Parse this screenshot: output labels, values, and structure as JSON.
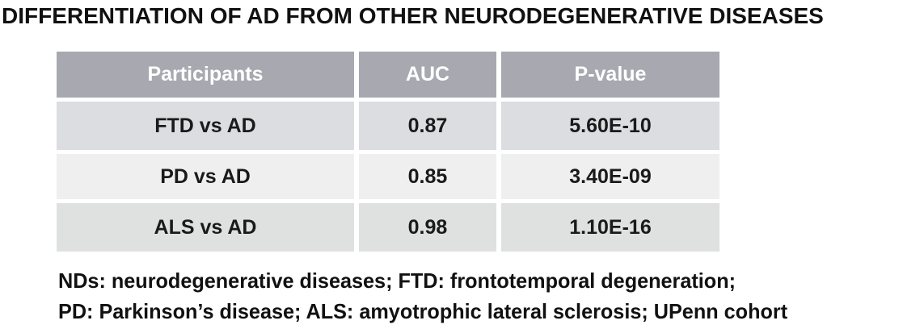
{
  "title": "DIFFERENTIATION OF AD FROM OTHER NEURODEGENERATIVE DISEASES",
  "table": {
    "columns": [
      "Participants",
      "AUC",
      "P-value"
    ],
    "rows": [
      [
        "FTD vs AD",
        "0.87",
        "5.60E-10"
      ],
      [
        "PD vs AD",
        "0.85",
        "3.40E-09"
      ],
      [
        "ALS vs AD",
        "0.98",
        "1.10E-16"
      ]
    ]
  },
  "footnote": {
    "line1": "NDs: neurodegenerative diseases; FTD: frontotemporal degeneration;",
    "line2": "PD: Parkinson’s disease; ALS: amyotrophic lateral sclerosis; UPenn cohort"
  },
  "colors": {
    "background": "#FFFFFF",
    "header_bg": "#A7A8B0",
    "header_text": "#FFFFFF",
    "row1_bg": "#DBDDE1",
    "row2_bg": "#EFEFF0",
    "row3_bg": "#DFE1E0",
    "body_text": "#1A1A1A"
  }
}
